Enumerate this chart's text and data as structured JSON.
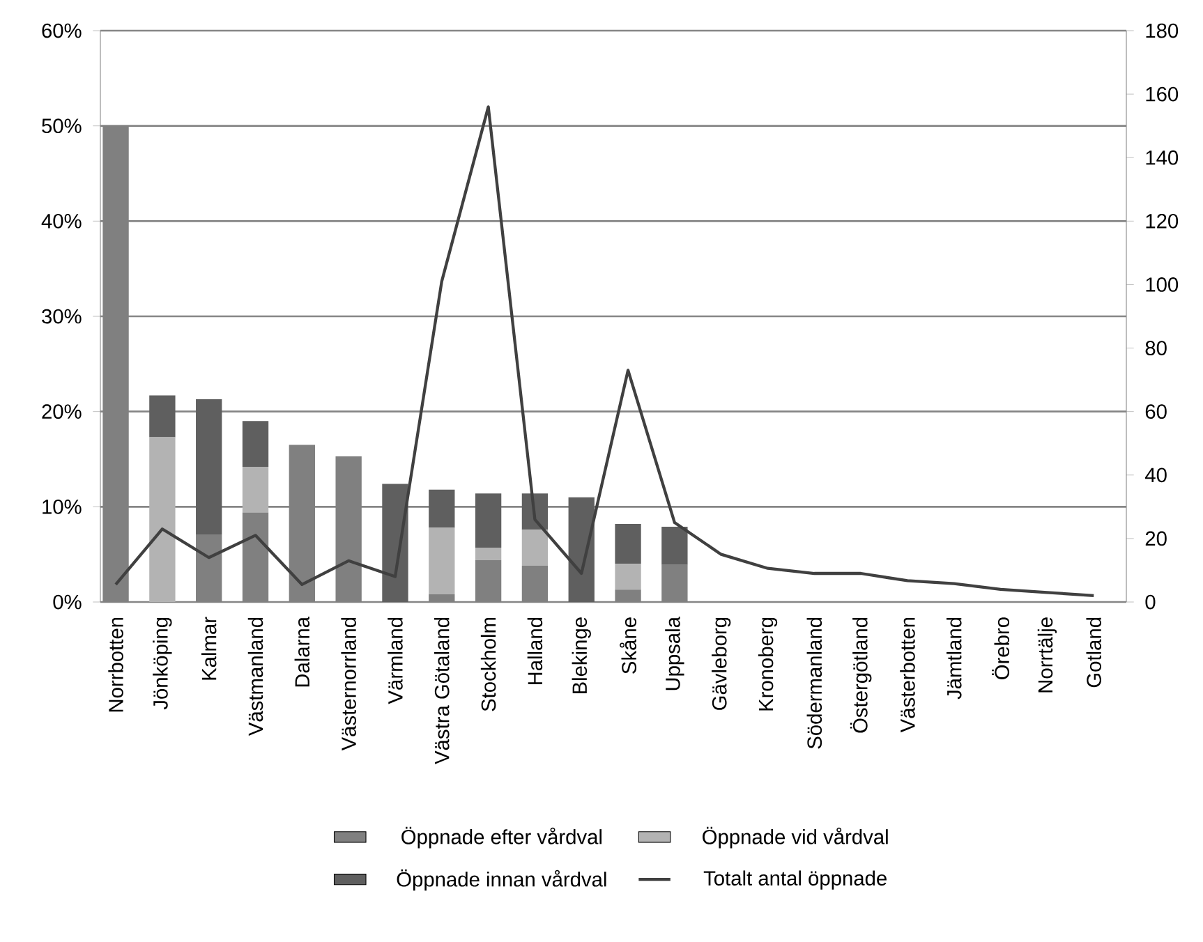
{
  "chart_data": {
    "type": "bar",
    "stacked": true,
    "categories": [
      "Norrbotten",
      "Jönköping",
      "Kalmar",
      "Västmanland",
      "Dalarna",
      "Västernorrland",
      "Värmland",
      "Västra Götaland",
      "Stockholm",
      "Halland",
      "Blekinge",
      "Skåne",
      "Uppsala",
      "Gävleborg",
      "Kronoberg",
      "Södermanland",
      "Östergötland",
      "Västerbotten",
      "Jämtland",
      "Örebro",
      "Norrtälje",
      "Gotland"
    ],
    "series": [
      {
        "name": "Öppnade efter vårdval",
        "color": "#808080",
        "values": [
          50,
          0,
          7.1,
          9.4,
          16.5,
          15.3,
          0,
          0.8,
          4.4,
          3.8,
          0,
          1.3,
          3.9,
          0,
          0,
          0,
          0,
          0,
          0,
          0,
          0,
          0
        ]
      },
      {
        "name": "Öppnade vid vårdval",
        "color": "#b3b3b3",
        "values": [
          0,
          17.3,
          0,
          4.8,
          0,
          0,
          0,
          7.0,
          1.3,
          3.8,
          0,
          2.7,
          0,
          0,
          0,
          0,
          0,
          0,
          0,
          0,
          0,
          0
        ]
      },
      {
        "name": "Öppnade innan vårdval",
        "color": "#5f5f5f",
        "values": [
          0,
          4.4,
          14.2,
          4.8,
          0,
          0,
          12.4,
          4.0,
          5.7,
          3.8,
          11.0,
          4.2,
          4.0,
          0,
          0,
          0,
          0,
          0,
          0,
          0,
          0,
          0
        ]
      },
      {
        "name": "Totalt antal öppnade",
        "type": "line",
        "axis": "y2",
        "color": "#404040",
        "values": [
          5.5,
          23,
          14,
          21,
          5.5,
          13,
          8,
          101,
          156,
          26,
          9,
          73,
          25,
          15,
          10.6,
          9,
          9,
          6.7,
          5.8,
          4,
          3,
          2
        ]
      }
    ],
    "ylim": [
      0,
      60
    ],
    "yticks": [
      {
        "value": 0,
        "label": "0%"
      },
      {
        "value": 10,
        "label": "10%"
      },
      {
        "value": 20,
        "label": "20%"
      },
      {
        "value": 30,
        "label": "30%"
      },
      {
        "value": 40,
        "label": "40%"
      },
      {
        "value": 50,
        "label": "50%"
      },
      {
        "value": 60,
        "label": "60%"
      }
    ],
    "y2lim": [
      0,
      180
    ],
    "y2ticks": [
      0,
      20,
      40,
      60,
      80,
      100,
      120,
      140,
      160,
      180
    ],
    "grid": "y",
    "legend": "bottom"
  }
}
